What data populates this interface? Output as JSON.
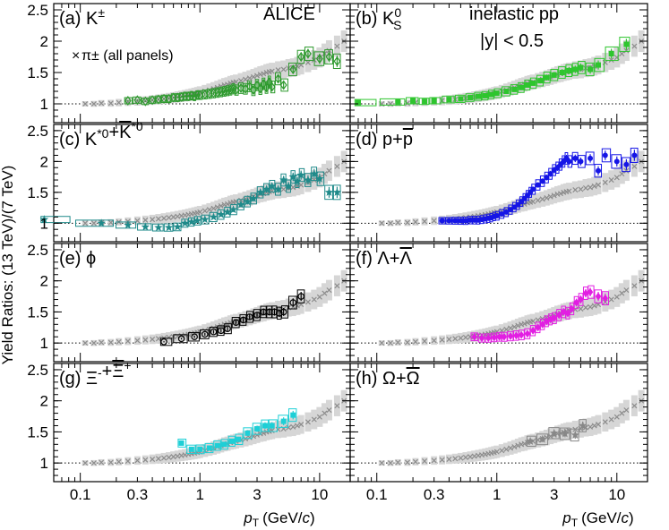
{
  "chart_data": {
    "type": "scatter",
    "title": "",
    "experiment": "ALICE",
    "system": "inelastic pp",
    "rapidity_cut": "|y| < 0.5",
    "xlabel": "pT (GeV/c)",
    "xlabel_main": "p",
    "xlabel_sub": "T",
    "xlabel_unit_pre": "(GeV/",
    "xlabel_unit_c": "c",
    "xlabel_unit_post": ")",
    "ylabel": "Yield Ratios: (13 TeV)/(7 TeV)",
    "xscale": "log",
    "xlim": [
      0.06,
      18
    ],
    "ylim": [
      0.7,
      2.6
    ],
    "x_ticks": [
      {
        "value": 0.1,
        "label": "0.1"
      },
      {
        "value": 0.3,
        "label": "0.3"
      },
      {
        "value": 1,
        "label": "1"
      },
      {
        "value": 3,
        "label": "3"
      },
      {
        "value": 10,
        "label": "10"
      }
    ],
    "y_ticks": [
      {
        "value": 1,
        "label": "1"
      },
      {
        "value": 1.5,
        "label": "1.5"
      },
      {
        "value": 2,
        "label": "2"
      },
      {
        "value": 2.5,
        "label": "2.5"
      }
    ],
    "reference_line": 1,
    "legend": {
      "marker": "×",
      "text": "π± (all panels)"
    },
    "reference_series": {
      "name": "π±",
      "x": [
        0.11,
        0.13,
        0.15,
        0.18,
        0.21,
        0.25,
        0.3,
        0.35,
        0.4,
        0.45,
        0.5,
        0.55,
        0.6,
        0.65,
        0.7,
        0.75,
        0.8,
        0.85,
        0.9,
        0.95,
        1.0,
        1.1,
        1.2,
        1.3,
        1.4,
        1.5,
        1.6,
        1.7,
        1.8,
        1.9,
        2.0,
        2.2,
        2.4,
        2.6,
        2.8,
        3.0,
        3.2,
        3.4,
        3.6,
        3.8,
        4.0,
        4.5,
        5.0,
        5.5,
        6.0,
        6.5,
        7.0,
        8.0,
        9.0,
        10.0,
        11.0,
        12.0,
        14.0,
        16.0
      ],
      "values": [
        1.0,
        1.0,
        1.01,
        1.01,
        1.02,
        1.03,
        1.04,
        1.05,
        1.06,
        1.07,
        1.08,
        1.09,
        1.1,
        1.11,
        1.12,
        1.13,
        1.14,
        1.15,
        1.16,
        1.17,
        1.18,
        1.2,
        1.22,
        1.24,
        1.26,
        1.28,
        1.3,
        1.31,
        1.33,
        1.34,
        1.35,
        1.37,
        1.39,
        1.41,
        1.43,
        1.45,
        1.47,
        1.48,
        1.5,
        1.51,
        1.52,
        1.54,
        1.55,
        1.57,
        1.58,
        1.6,
        1.62,
        1.66,
        1.7,
        1.74,
        1.8,
        1.85,
        1.92,
        2.0
      ]
    },
    "panels": [
      {
        "id": "a",
        "label": "(a) K±",
        "color": "#2e9a2e",
        "marker": "diamond-open",
        "x": [
          0.25,
          0.3,
          0.35,
          0.4,
          0.45,
          0.5,
          0.55,
          0.6,
          0.65,
          0.7,
          0.75,
          0.8,
          0.85,
          0.9,
          0.95,
          1.0,
          1.1,
          1.2,
          1.3,
          1.4,
          1.5,
          1.6,
          1.7,
          1.8,
          1.9,
          2.0,
          2.2,
          2.4,
          2.6,
          2.8,
          3.0,
          3.2,
          3.4,
          3.6,
          3.8,
          4.0,
          4.5,
          5.0,
          6.0,
          7.0,
          8.0,
          10.0,
          12.0,
          14.0
        ],
        "values": [
          1.05,
          1.06,
          1.04,
          1.06,
          1.07,
          1.08,
          1.08,
          1.1,
          1.1,
          1.11,
          1.12,
          1.12,
          1.13,
          1.12,
          1.14,
          1.14,
          1.15,
          1.16,
          1.17,
          1.18,
          1.19,
          1.2,
          1.21,
          1.22,
          1.24,
          1.22,
          1.25,
          1.24,
          1.28,
          1.22,
          1.3,
          1.24,
          1.32,
          1.26,
          1.35,
          1.27,
          1.4,
          1.3,
          1.55,
          1.75,
          1.8,
          1.72,
          1.75,
          1.68
        ]
      },
      {
        "id": "b",
        "label": "(b) K0S",
        "color": "#2ec52e",
        "marker": "square-filled",
        "x": [
          0.07,
          0.15,
          0.2,
          0.25,
          0.3,
          0.4,
          0.5,
          0.6,
          0.7,
          0.8,
          0.9,
          1.0,
          1.2,
          1.4,
          1.6,
          1.8,
          2.0,
          2.3,
          2.6,
          3.0,
          3.5,
          4.0,
          4.5,
          5.0,
          6.0,
          7.0,
          9.0,
          12.0
        ],
        "values": [
          1.02,
          1.03,
          1.05,
          1.04,
          1.05,
          1.07,
          1.08,
          1.1,
          1.12,
          1.13,
          1.15,
          1.17,
          1.2,
          1.23,
          1.26,
          1.3,
          1.33,
          1.37,
          1.42,
          1.46,
          1.5,
          1.53,
          1.55,
          1.58,
          1.55,
          1.62,
          1.8,
          1.95
        ]
      },
      {
        "id": "c",
        "label": "(c) K*0+K̄*0",
        "color": "#1f8a8a",
        "marker": "star-filled",
        "x": [
          0.05,
          0.15,
          0.25,
          0.35,
          0.45,
          0.55,
          0.65,
          0.75,
          0.85,
          0.95,
          1.1,
          1.3,
          1.5,
          1.7,
          1.9,
          2.2,
          2.5,
          2.8,
          3.2,
          3.6,
          4.0,
          4.5,
          5.0,
          5.5,
          6.0,
          6.5,
          7.0,
          8.0,
          9.0,
          10.0,
          12.0,
          14.0
        ],
        "values": [
          1.06,
          1.0,
          0.97,
          0.94,
          0.93,
          0.93,
          0.94,
          1.0,
          1.02,
          1.04,
          1.06,
          1.1,
          1.14,
          1.18,
          1.22,
          1.3,
          1.35,
          1.4,
          1.5,
          1.55,
          1.6,
          1.55,
          1.7,
          1.6,
          1.75,
          1.68,
          1.78,
          1.7,
          1.8,
          1.72,
          1.5,
          1.5
        ]
      },
      {
        "id": "d",
        "label": "(d) p+p̄",
        "color": "#1515e6",
        "marker": "circle-filled",
        "x": [
          0.35,
          0.4,
          0.45,
          0.5,
          0.55,
          0.6,
          0.65,
          0.7,
          0.75,
          0.8,
          0.85,
          0.9,
          0.95,
          1.0,
          1.1,
          1.2,
          1.3,
          1.4,
          1.5,
          1.6,
          1.7,
          1.8,
          1.9,
          2.0,
          2.2,
          2.4,
          2.6,
          2.8,
          3.0,
          3.2,
          3.4,
          3.6,
          3.8,
          4.0,
          4.5,
          5.0,
          6.0,
          7.0,
          8.0,
          10.0,
          12.0,
          14.0
        ],
        "values": [
          1.04,
          1.04,
          1.04,
          1.04,
          1.04,
          1.05,
          1.05,
          1.05,
          1.06,
          1.07,
          1.08,
          1.09,
          1.11,
          1.12,
          1.15,
          1.18,
          1.22,
          1.26,
          1.3,
          1.35,
          1.4,
          1.45,
          1.5,
          1.55,
          1.62,
          1.68,
          1.74,
          1.8,
          1.86,
          1.9,
          1.95,
          2.0,
          2.05,
          2.0,
          2.05,
          2.0,
          2.05,
          1.85,
          2.1,
          2.0,
          1.95,
          2.1
        ]
      },
      {
        "id": "e",
        "label": "(e) ϕ",
        "color": "#000000",
        "marker": "circle-open",
        "x": [
          0.5,
          0.7,
          0.9,
          1.1,
          1.3,
          1.5,
          1.7,
          2.0,
          2.3,
          2.6,
          3.0,
          3.4,
          3.8,
          4.2,
          4.6,
          5.0,
          6.0,
          7.0
        ],
        "values": [
          1.02,
          1.07,
          1.1,
          1.14,
          1.18,
          1.2,
          1.23,
          1.33,
          1.37,
          1.42,
          1.45,
          1.5,
          1.5,
          1.5,
          1.48,
          1.5,
          1.65,
          1.75
        ]
      },
      {
        "id": "f",
        "label": "(f) Λ+Λ̄",
        "color": "#e21ee2",
        "marker": "diamond-filled",
        "x": [
          0.65,
          0.75,
          0.85,
          0.95,
          1.05,
          1.15,
          1.3,
          1.45,
          1.6,
          1.8,
          2.0,
          2.2,
          2.4,
          2.6,
          2.8,
          3.0,
          3.3,
          3.6,
          3.9,
          4.2,
          4.6,
          5.0,
          5.5,
          6.0,
          7.0,
          8.0
        ],
        "values": [
          1.1,
          1.08,
          1.08,
          1.09,
          1.1,
          1.1,
          1.11,
          1.12,
          1.13,
          1.15,
          1.2,
          1.25,
          1.3,
          1.35,
          1.38,
          1.4,
          1.45,
          1.5,
          1.48,
          1.55,
          1.65,
          1.7,
          1.8,
          1.82,
          1.75,
          1.72
        ]
      },
      {
        "id": "g",
        "label": "(g) Ξ-+Ξ̄+",
        "color": "#1ecfd6",
        "marker": "square-filled",
        "x": [
          0.7,
          0.85,
          1.0,
          1.2,
          1.4,
          1.6,
          1.85,
          2.1,
          2.5,
          3.0,
          3.5,
          4.0,
          5.0,
          6.0
        ],
        "values": [
          1.32,
          1.22,
          1.22,
          1.24,
          1.28,
          1.3,
          1.35,
          1.38,
          1.48,
          1.55,
          1.6,
          1.6,
          1.67,
          1.77
        ]
      },
      {
        "id": "h",
        "label": "(h) Ω+Ω̄",
        "color": "#888888",
        "marker": "star-filled",
        "x": [
          1.9,
          2.4,
          3.0,
          3.7,
          4.5,
          5.2
        ],
        "values": [
          1.35,
          1.38,
          1.48,
          1.47,
          1.45,
          1.6
        ]
      }
    ]
  }
}
